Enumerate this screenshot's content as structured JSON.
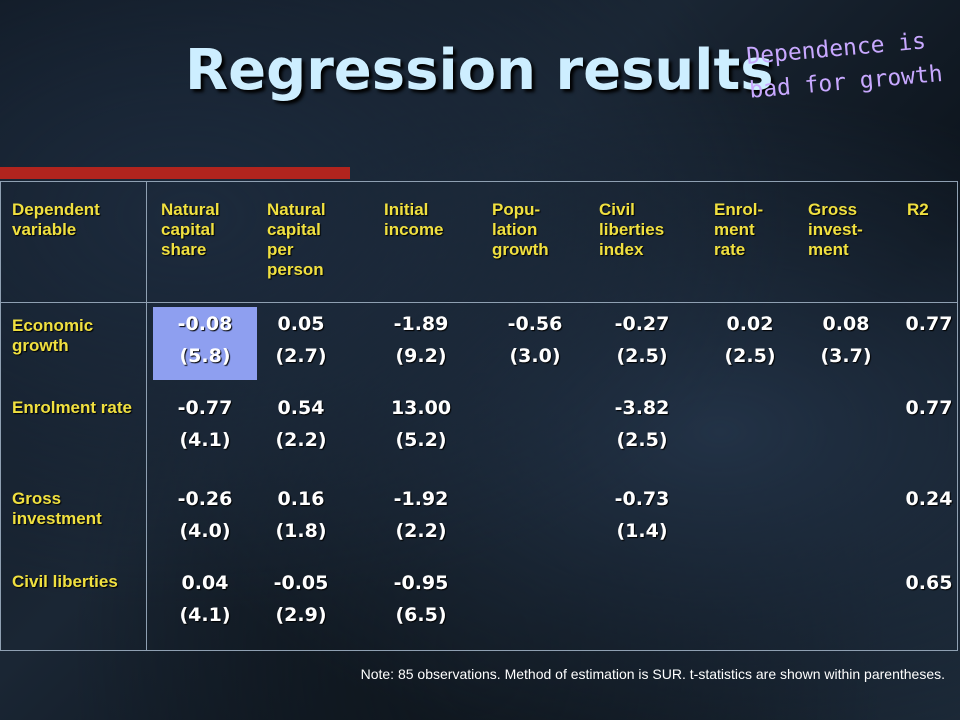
{
  "title": "Regression results",
  "handwritten_note": "Dependence is bad for growth",
  "headers": [
    "Dependent variable",
    "Natural capital share",
    "Natural capital per person",
    "Initial income",
    "Popu- lation growth",
    "Civil liberties index",
    "Enrol- ment rate",
    "Gross invest- ment",
    "R2"
  ],
  "rows": [
    {
      "label": "Economic growth",
      "coef": [
        "-0.08",
        "0.05",
        "-1.89",
        "-0.56",
        "-0.27",
        "0.02",
        "0.08",
        "0.77"
      ],
      "tstat": [
        "(5.8)",
        "(2.7)",
        "(9.2)",
        "(3.0)",
        "(2.5)",
        "(2.5)",
        "(3.7)",
        ""
      ]
    },
    {
      "label": "Enrolment rate",
      "coef": [
        "-0.77",
        "0.54",
        "13.00",
        "",
        "-3.82",
        "",
        "",
        "0.77"
      ],
      "tstat": [
        "(4.1)",
        "(2.2)",
        "(5.2)",
        "",
        "(2.5)",
        "",
        "",
        ""
      ]
    },
    {
      "label": "Gross investment",
      "coef": [
        "-0.26",
        "0.16",
        "-1.92",
        "",
        "-0.73",
        "",
        "",
        "0.24"
      ],
      "tstat": [
        "(4.0)",
        "(1.8)",
        "(2.2)",
        "",
        "(1.4)",
        "",
        "",
        ""
      ]
    },
    {
      "label": "Civil liberties",
      "coef": [
        "0.04",
        "-0.05",
        "-0.95",
        "",
        "",
        "",
        "",
        "0.65"
      ],
      "tstat": [
        "(4.1)",
        "(2.9)",
        "(6.5)",
        "",
        "",
        "",
        "",
        ""
      ]
    }
  ],
  "highlight": {
    "row": 0,
    "col": 0,
    "color": "#8e9ff0"
  },
  "note": "Note: 85 observations. Method of estimation is SUR. t-statistics are shown within parentheses."
}
